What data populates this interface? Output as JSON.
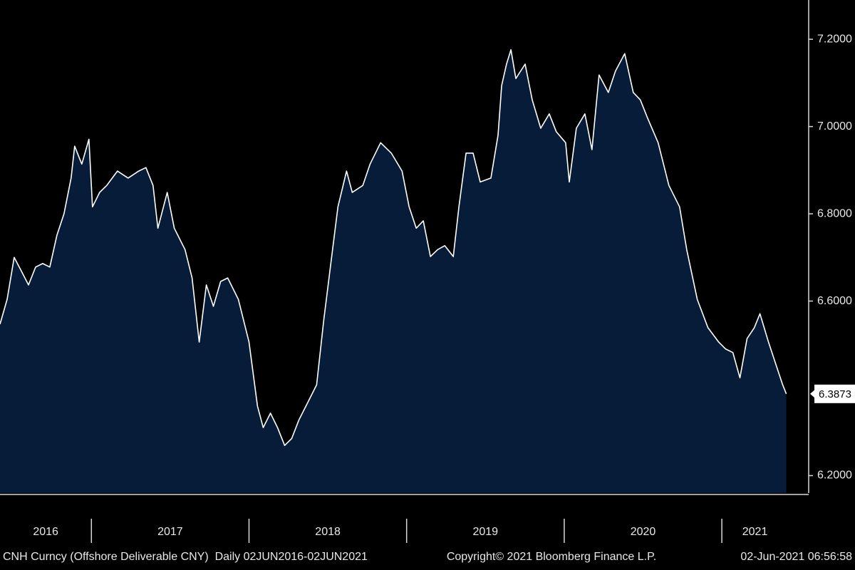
{
  "chart_data": {
    "type": "area",
    "x": [
      2016.42,
      2016.465,
      2016.51,
      2016.555,
      2016.601,
      2016.646,
      2016.691,
      2016.736,
      2016.781,
      2016.826,
      2016.871,
      2016.894,
      2016.939,
      2016.984,
      2017.007,
      2017.052,
      2017.097,
      2017.165,
      2017.233,
      2017.3,
      2017.346,
      2017.391,
      2017.422,
      2017.481,
      2017.526,
      2017.594,
      2017.639,
      2017.684,
      2017.729,
      2017.774,
      2017.82,
      2017.865,
      2017.932,
      2018.0,
      2018.054,
      2018.09,
      2018.136,
      2018.181,
      2018.226,
      2018.271,
      2018.316,
      2018.361,
      2018.429,
      2018.474,
      2018.519,
      2018.564,
      2018.619,
      2018.655,
      2018.722,
      2018.768,
      2018.835,
      2018.903,
      2018.971,
      2019.016,
      2019.061,
      2019.106,
      2019.151,
      2019.197,
      2019.242,
      2019.296,
      2019.332,
      2019.377,
      2019.422,
      2019.467,
      2019.535,
      2019.58,
      2019.603,
      2019.634,
      2019.662,
      2019.693,
      2019.752,
      2019.797,
      2019.851,
      2019.905,
      2019.95,
      2020.009,
      2020.032,
      2020.077,
      2020.131,
      2020.176,
      2020.221,
      2020.28,
      2020.325,
      2020.384,
      2020.438,
      2020.483,
      2020.528,
      2020.596,
      2020.664,
      2020.732,
      2020.777,
      2020.844,
      2020.912,
      2020.98,
      2021.025,
      2021.07,
      2021.115,
      2021.16,
      2021.206,
      2021.242,
      2021.296,
      2021.341,
      2021.386,
      2021.409
    ],
    "series": [
      {
        "name": "CNH Curncy",
        "color": "#ffffff",
        "fill": "#071c38",
        "values": [
          6.547,
          6.604,
          6.7,
          6.669,
          6.637,
          6.678,
          6.686,
          6.678,
          6.751,
          6.8,
          6.882,
          6.955,
          6.914,
          6.971,
          6.816,
          6.849,
          6.865,
          6.898,
          6.882,
          6.898,
          6.906,
          6.865,
          6.767,
          6.849,
          6.767,
          6.718,
          6.653,
          6.506,
          6.637,
          6.588,
          6.645,
          6.653,
          6.604,
          6.506,
          6.359,
          6.31,
          6.343,
          6.31,
          6.269,
          6.285,
          6.327,
          6.359,
          6.408,
          6.555,
          6.686,
          6.816,
          6.898,
          6.849,
          6.865,
          6.914,
          6.963,
          6.939,
          6.898,
          6.816,
          6.767,
          6.784,
          6.702,
          6.718,
          6.727,
          6.702,
          6.816,
          6.939,
          6.939,
          6.873,
          6.882,
          6.98,
          7.094,
          7.143,
          7.176,
          7.11,
          7.143,
          7.061,
          6.996,
          7.029,
          6.988,
          6.963,
          6.873,
          6.996,
          7.029,
          6.947,
          7.118,
          7.078,
          7.127,
          7.167,
          7.078,
          7.061,
          7.02,
          6.963,
          6.865,
          6.816,
          6.718,
          6.604,
          6.539,
          6.506,
          6.49,
          6.482,
          6.424,
          6.514,
          6.539,
          6.571,
          6.506,
          6.457,
          6.408,
          6.3873
        ]
      }
    ],
    "xlim": [
      2016.42,
      2021.42
    ],
    "xticks": [
      2016,
      2017,
      2018,
      2019,
      2020,
      2021
    ],
    "ylim": [
      6.16,
      7.29
    ],
    "yticks": [
      {
        "value": 6.2,
        "label": "6.2000"
      },
      {
        "value": 6.6,
        "label": "6.6000"
      },
      {
        "value": 6.8,
        "label": "6.8000"
      },
      {
        "value": 7.0,
        "label": "7.0000"
      },
      {
        "value": 7.2,
        "label": "7.2000"
      }
    ],
    "grid": false,
    "last_value_tag": true
  },
  "footer": {
    "left": "CNH Curncy (Offshore Deliverable CNY)  Daily 02JUN2016-02JUN2021",
    "center": "Copyright© 2021 Bloomberg Finance L.P.",
    "right": "02-Jun-2021 06:56:58"
  }
}
